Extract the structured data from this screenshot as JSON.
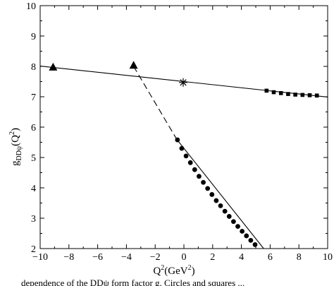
{
  "chart_data": {
    "type": "scatter",
    "title": "",
    "xlabel": "Q²(GeV²)",
    "xlabel_base": "Q",
    "xlabel_sup": "2",
    "xlabel_mid": "(GeV",
    "xlabel_sup2": "2",
    "xlabel_end": ")",
    "ylabel": "g_DDψ(Q²)",
    "xlim": [
      -10,
      10
    ],
    "ylim": [
      2,
      10
    ],
    "grid": false,
    "xticks": [
      -10,
      -8,
      -6,
      -4,
      -2,
      0,
      2,
      4,
      6,
      8,
      10
    ],
    "yticks": [
      2,
      3,
      4,
      5,
      6,
      7,
      8,
      9,
      10
    ],
    "lines": [
      {
        "style": "solid",
        "x": [
          -10,
          10
        ],
        "y": [
          8.01,
          6.99
        ]
      },
      {
        "style": "dashed",
        "x": [
          -3.5,
          -0.5
        ],
        "y": [
          8.0,
          5.6
        ]
      },
      {
        "style": "solid",
        "x": [
          -0.5,
          5.55
        ],
        "y": [
          5.6,
          2.0
        ]
      }
    ],
    "series": [
      {
        "marker": "triangle",
        "x": [
          -9.1,
          -3.5
        ],
        "y": [
          7.98,
          8.04
        ]
      },
      {
        "marker": "star",
        "x": [
          -0.05
        ],
        "y": [
          7.47
        ]
      },
      {
        "marker": "square",
        "x": [
          5.75,
          6.25,
          6.75,
          7.25,
          7.75,
          8.25,
          8.75,
          9.25
        ],
        "y": [
          7.2,
          7.15,
          7.12,
          7.09,
          7.07,
          7.06,
          7.05,
          7.04
        ]
      },
      {
        "marker": "circle",
        "x": [
          -0.45,
          -0.15,
          0.15,
          0.45,
          0.75,
          1.05,
          1.35,
          1.65,
          1.95,
          2.25,
          2.55,
          2.85,
          3.15,
          3.45,
          3.75,
          4.05,
          4.35,
          4.65,
          4.95
        ],
        "y": [
          5.58,
          5.3,
          5.05,
          4.83,
          4.6,
          4.38,
          4.18,
          3.98,
          3.78,
          3.58,
          3.41,
          3.23,
          3.06,
          2.89,
          2.73,
          2.57,
          2.42,
          2.27,
          2.13
        ]
      }
    ]
  },
  "caption": "dependence of the DDψ form factor g. Circles and squares ..."
}
